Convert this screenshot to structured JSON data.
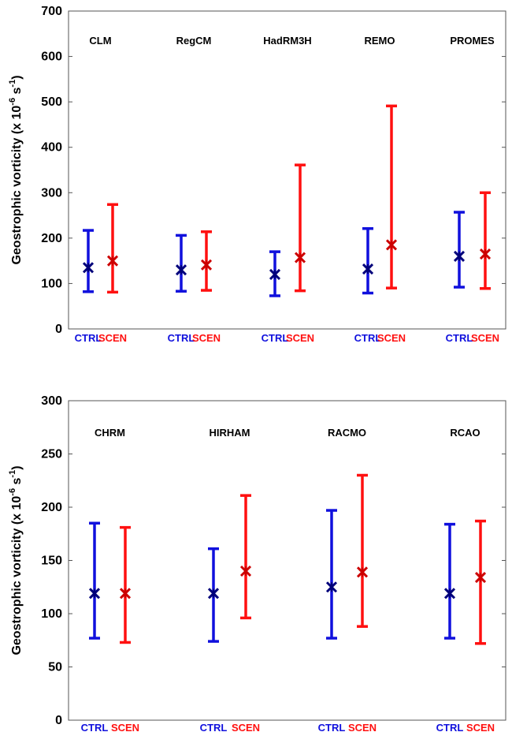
{
  "colors": {
    "ctrl": "#1010dd",
    "scen": "#ff1010",
    "ctrl_marker": "#00007a",
    "scen_marker": "#cc0000"
  },
  "chart_data": [
    {
      "type": "errorbar",
      "ylabel": "Geostrophic vorticity (x 10",
      "ylabel_exp": "-6",
      "ylabel_unit": " s",
      "ylabel_unit_exp": "-1",
      "ylabel_close": ")",
      "ylim": [
        0,
        700
      ],
      "yticks": [
        "0",
        "100",
        "200",
        "300",
        "400",
        "500",
        "600",
        "700"
      ],
      "grid": false,
      "groups": [
        {
          "model": "CLM",
          "ctrl": {
            "label": "CTRL",
            "mean": 135,
            "low": 82,
            "high": 217
          },
          "scen": {
            "label": "SCEN",
            "mean": 150,
            "low": 81,
            "high": 274
          }
        },
        {
          "model": "RegCM",
          "ctrl": {
            "label": "CTRL",
            "mean": 130,
            "low": 83,
            "high": 206
          },
          "scen": {
            "label": "SCEN",
            "mean": 141,
            "low": 85,
            "high": 214
          }
        },
        {
          "model": "HadRM3H",
          "ctrl": {
            "label": "CTRL",
            "mean": 120,
            "low": 73,
            "high": 170
          },
          "scen": {
            "label": "SCEN",
            "mean": 157,
            "low": 84,
            "high": 361
          }
        },
        {
          "model": "REMO",
          "ctrl": {
            "label": "CTRL",
            "mean": 132,
            "low": 79,
            "high": 221
          },
          "scen": {
            "label": "SCEN",
            "mean": 185,
            "low": 90,
            "high": 491
          }
        },
        {
          "model": "PROMES",
          "ctrl": {
            "label": "CTRL",
            "mean": 160,
            "low": 92,
            "high": 257
          },
          "scen": {
            "label": "SCEN",
            "mean": 165,
            "low": 89,
            "high": 300
          }
        }
      ]
    },
    {
      "type": "errorbar",
      "ylabel": "Geostrophic vorticity (x 10",
      "ylabel_exp": "-6",
      "ylabel_unit": " s",
      "ylabel_unit_exp": "-1",
      "ylabel_close": ")",
      "ylim": [
        0,
        300
      ],
      "yticks": [
        "0",
        "50",
        "100",
        "150",
        "200",
        "250",
        "300"
      ],
      "grid": false,
      "groups": [
        {
          "model": "CHRM",
          "ctrl": {
            "label": "CTRL",
            "mean": 119,
            "low": 77,
            "high": 185
          },
          "scen": {
            "label": "SCEN",
            "mean": 119,
            "low": 73,
            "high": 181
          }
        },
        {
          "model": "HIRHAM",
          "ctrl": {
            "label": "CTRL",
            "mean": 119,
            "low": 74,
            "high": 161
          },
          "scen": {
            "label": "SCEN",
            "mean": 140,
            "low": 96,
            "high": 211
          }
        },
        {
          "model": "RACMO",
          "ctrl": {
            "label": "CTRL",
            "mean": 125,
            "low": 77,
            "high": 197
          },
          "scen": {
            "label": "SCEN",
            "mean": 139,
            "low": 88,
            "high": 230
          }
        },
        {
          "model": "RCAO",
          "ctrl": {
            "label": "CTRL",
            "mean": 119,
            "low": 77,
            "high": 184
          },
          "scen": {
            "label": "SCEN",
            "mean": 134,
            "low": 72,
            "high": 187
          }
        }
      ]
    }
  ]
}
